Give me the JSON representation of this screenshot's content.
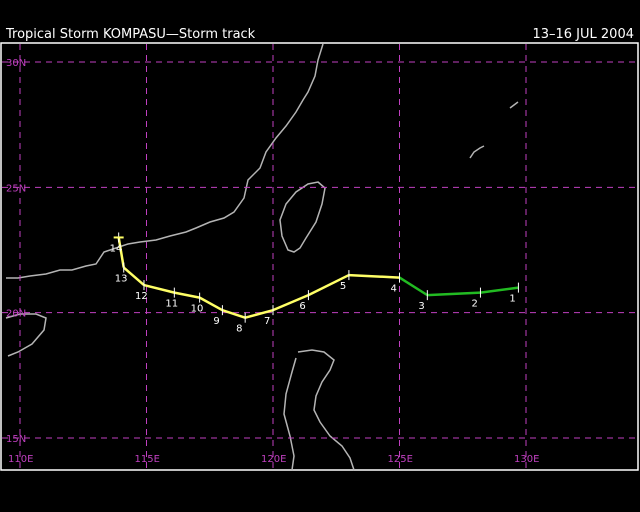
{
  "header": {
    "title": "Tropical Storm KOMPASU—Storm track",
    "dates": "13–16 JUL 2004"
  },
  "map": {
    "lon_range": [
      110,
      130
    ],
    "lat_range": [
      15,
      30
    ],
    "grid_lines": true,
    "colors": {
      "background": "#000000",
      "coast": "#b4b4b4",
      "grid": "#c040c0",
      "frame": "#ffffff",
      "track_storm": "#ffff66",
      "track_depression": "#22bb22"
    },
    "lat_labels": [
      {
        "lat": 30,
        "text": "30N"
      },
      {
        "lat": 25,
        "text": "25N"
      },
      {
        "lat": 20,
        "text": "20N"
      },
      {
        "lat": 15,
        "text": "15N"
      }
    ],
    "lon_labels": [
      {
        "lon": 110,
        "text": "110E"
      },
      {
        "lon": 115,
        "text": "115E"
      },
      {
        "lon": 120,
        "text": "120E"
      },
      {
        "lon": 125,
        "text": "125E"
      },
      {
        "lon": 130,
        "text": "130E"
      }
    ]
  },
  "chart_data": {
    "type": "line",
    "x_label": "",
    "y_label": "",
    "points": [
      {
        "label": "1",
        "lon": 129.7,
        "lat": 21.0,
        "intensity": "depression"
      },
      {
        "label": "2",
        "lon": 128.2,
        "lat": 20.8,
        "intensity": "depression"
      },
      {
        "label": "3",
        "lon": 126.1,
        "lat": 20.7,
        "intensity": "depression"
      },
      {
        "label": "4",
        "lon": 125.0,
        "lat": 21.4,
        "intensity": "depression"
      },
      {
        "label": "5",
        "lon": 123.0,
        "lat": 21.5,
        "intensity": "storm"
      },
      {
        "label": "6",
        "lon": 121.4,
        "lat": 20.7,
        "intensity": "storm"
      },
      {
        "label": "7",
        "lon": 120.0,
        "lat": 20.1,
        "intensity": "storm"
      },
      {
        "label": "8",
        "lon": 118.9,
        "lat": 19.8,
        "intensity": "storm"
      },
      {
        "label": "9",
        "lon": 118.0,
        "lat": 20.1,
        "intensity": "storm"
      },
      {
        "label": "10",
        "lon": 117.1,
        "lat": 20.6,
        "intensity": "storm"
      },
      {
        "label": "11",
        "lon": 116.1,
        "lat": 20.8,
        "intensity": "storm"
      },
      {
        "label": "12",
        "lon": 114.9,
        "lat": 21.1,
        "intensity": "storm"
      },
      {
        "label": "13",
        "lon": 114.1,
        "lat": 21.8,
        "intensity": "storm"
      },
      {
        "label": "14",
        "lon": 113.9,
        "lat": 23.0,
        "intensity": "storm"
      }
    ]
  }
}
